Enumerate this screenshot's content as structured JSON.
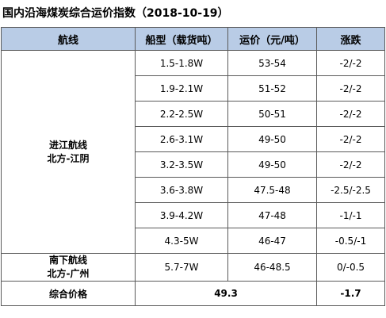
{
  "title": "国内沿海煤炭综合运价指数（2018-10-19）",
  "headers": {
    "route": "航线",
    "ship_type": "船型（载货吨）",
    "freight": "运价（元/吨）",
    "change": "涨跌"
  },
  "groups": [
    {
      "route_line1": "进江航线",
      "route_line2": "北方-江阴",
      "rows": [
        {
          "ship_type": "1.5-1.8W",
          "freight": "53-54",
          "change": "-2/-2"
        },
        {
          "ship_type": "1.9-2.1W",
          "freight": "51-52",
          "change": "-2/-2"
        },
        {
          "ship_type": "2.2-2.5W",
          "freight": "50-51",
          "change": "-2/-2"
        },
        {
          "ship_type": "2.6-3.1W",
          "freight": "49-50",
          "change": "-2/-2"
        },
        {
          "ship_type": "3.2-3.5W",
          "freight": "49-50",
          "change": "-2/-2"
        },
        {
          "ship_type": "3.6-3.8W",
          "freight": "47.5-48",
          "change": "-2.5/-2.5"
        },
        {
          "ship_type": "3.9-4.2W",
          "freight": "47-48",
          "change": "-1/-1"
        },
        {
          "ship_type": "4.3-5W",
          "freight": "46-47",
          "change": "-0.5/-1"
        }
      ]
    },
    {
      "route_line1": "南下航线",
      "route_line2": "北方-广州",
      "rows": [
        {
          "ship_type": "5.7-7W",
          "freight": "46-48.5",
          "change": "0/-0.5"
        }
      ]
    }
  ],
  "summary": {
    "label": "综合价格",
    "price": "49.3",
    "change": "-1.7"
  }
}
